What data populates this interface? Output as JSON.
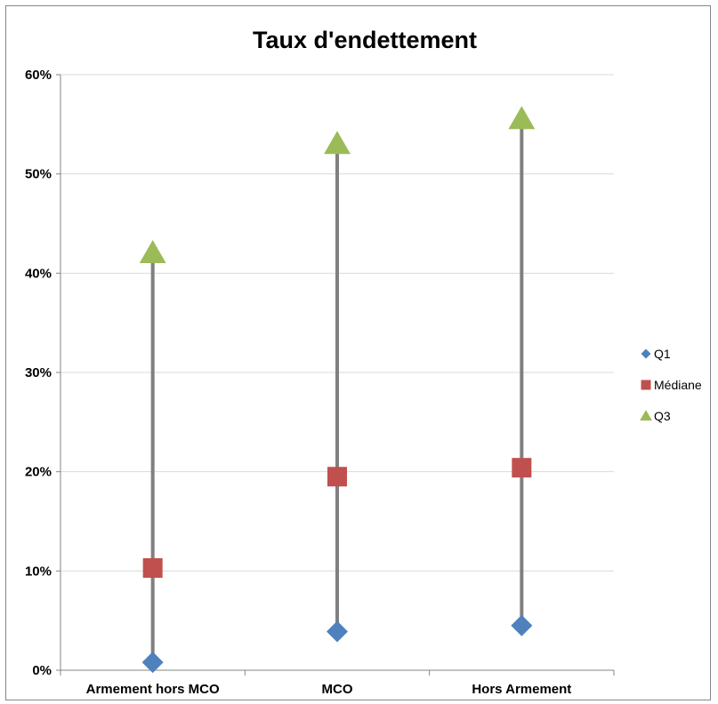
{
  "chart_data": {
    "type": "scatter",
    "title": "Taux d'endettement",
    "xlabel": "",
    "ylabel": "",
    "categories": [
      "Armement hors MCO",
      "MCO",
      "Hors Armement"
    ],
    "y_ticks": [
      "0%",
      "10%",
      "20%",
      "30%",
      "40%",
      "50%",
      "60%"
    ],
    "ylim": [
      0,
      0.6
    ],
    "grid": true,
    "legend_position": "right",
    "series": [
      {
        "name": "Q1",
        "marker": "diamond",
        "color": "#4f81bd",
        "values": [
          0.008,
          0.039,
          0.045
        ]
      },
      {
        "name": "Médiane",
        "marker": "square",
        "color": "#c0504d",
        "values": [
          0.103,
          0.195,
          0.204
        ]
      },
      {
        "name": "Q3",
        "marker": "triangle",
        "color": "#9bbb59",
        "values": [
          0.42,
          0.53,
          0.555
        ]
      }
    ],
    "range_line_color": "#808080"
  }
}
